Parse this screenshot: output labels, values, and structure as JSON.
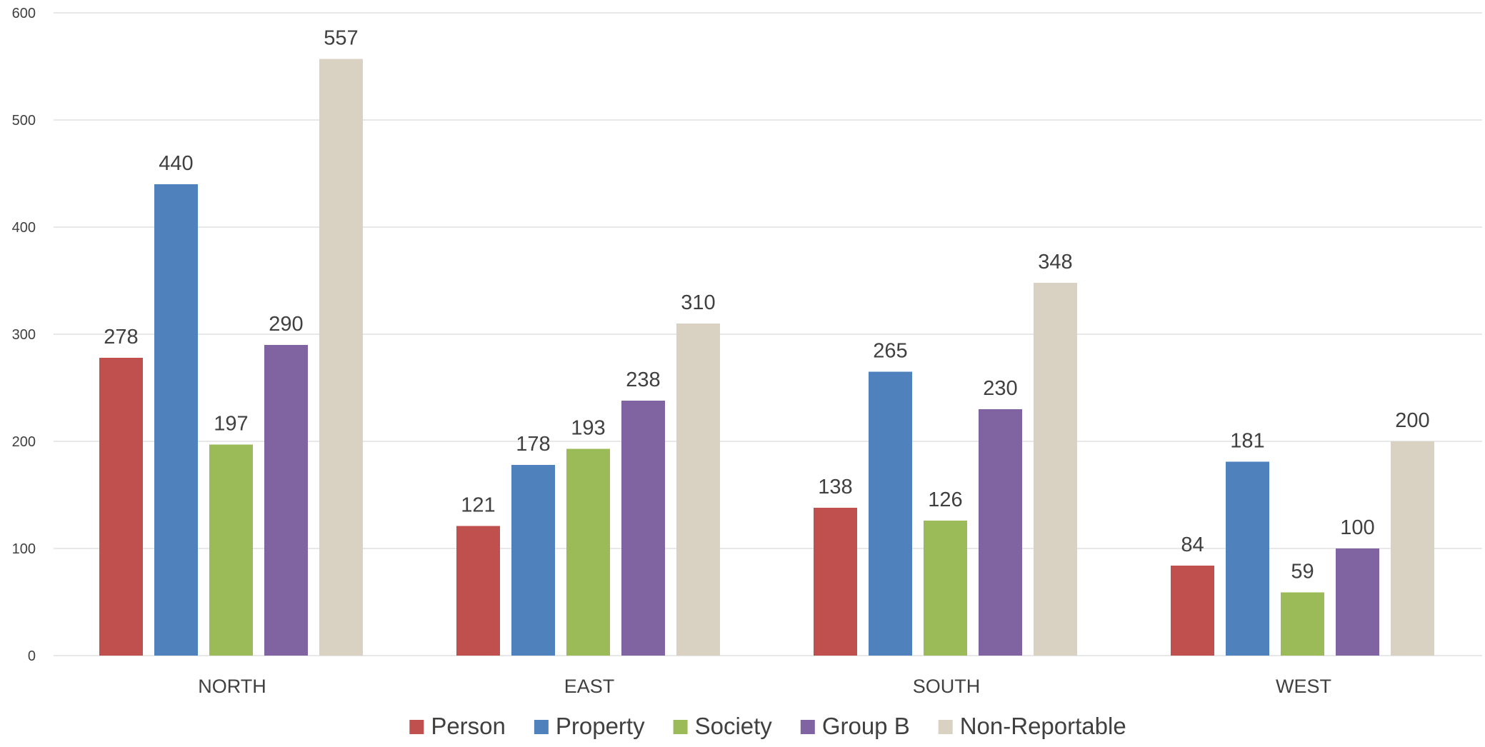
{
  "chart_data": {
    "type": "bar",
    "title": "",
    "xlabel": "",
    "ylabel": "",
    "categories": [
      "NORTH",
      "EAST",
      "SOUTH",
      "WEST"
    ],
    "series": [
      {
        "name": "Person",
        "color": "#C0504D",
        "values": [
          278,
          121,
          138,
          84
        ]
      },
      {
        "name": "Property",
        "color": "#4F81BD",
        "values": [
          440,
          178,
          265,
          181
        ]
      },
      {
        "name": "Society",
        "color": "#9BBB59",
        "values": [
          197,
          193,
          126,
          59
        ]
      },
      {
        "name": "Group B",
        "color": "#8064A2",
        "values": [
          290,
          238,
          230,
          100
        ]
      },
      {
        "name": "Non-Reportable",
        "color": "#D9D2C3",
        "values": [
          557,
          310,
          348,
          200
        ]
      }
    ],
    "ylim": [
      0,
      600
    ],
    "yticks": [
      0,
      100,
      200,
      300,
      400,
      500,
      600
    ],
    "grid": true,
    "legend_position": "bottom",
    "data_labels": true
  }
}
